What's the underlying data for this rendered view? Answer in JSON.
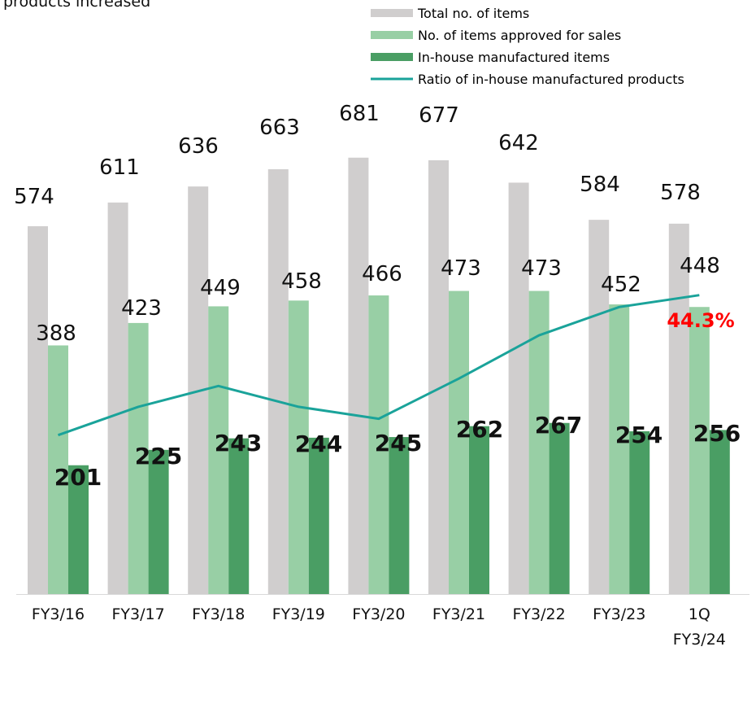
{
  "header_fragment": "products increased",
  "chart_data": {
    "type": "bar",
    "title": "",
    "xlabel": "",
    "ylabel": "",
    "categories": [
      "FY3/16",
      "FY3/17",
      "FY3/18",
      "FY3/19",
      "FY3/20",
      "FY3/21",
      "FY3/22",
      "FY3/23",
      "1Q FY3/24"
    ],
    "series": [
      {
        "name": "Total no. of items",
        "type": "bar",
        "color": "#d0cece",
        "values": [
          574,
          611,
          636,
          663,
          681,
          677,
          642,
          584,
          578
        ]
      },
      {
        "name": "No. of items approved for sales",
        "type": "bar",
        "color": "#98cfa5",
        "values": [
          388,
          423,
          449,
          458,
          466,
          473,
          473,
          452,
          448
        ]
      },
      {
        "name": "In-house manufactured items",
        "type": "bar",
        "color": "#4a9e64",
        "values": [
          201,
          225,
          243,
          244,
          245,
          262,
          267,
          254,
          256
        ]
      },
      {
        "name": "Ratio of in-house manufactured products",
        "type": "line",
        "color": "#1aa39a",
        "unit": "%",
        "values": [
          34.9,
          36.8,
          38.2,
          36.8,
          36.0,
          38.7,
          41.6,
          43.5,
          44.3
        ]
      }
    ],
    "value_labels": {
      "total": [
        "574",
        "611",
        "636",
        "663",
        "681",
        "677",
        "642",
        "584",
        "578"
      ],
      "approved": [
        "388",
        "423",
        "449",
        "458",
        "466",
        "473",
        "473",
        "452",
        "448"
      ],
      "inhouse": [
        "201",
        "225",
        "243",
        "244",
        "245",
        "262",
        "267",
        "254",
        "256"
      ],
      "ratio_last": "44.3%"
    },
    "tick_labels": [
      [
        "FY3/16"
      ],
      [
        "FY3/17"
      ],
      [
        "FY3/18"
      ],
      [
        "FY3/19"
      ],
      [
        "FY3/20"
      ],
      [
        "FY3/21"
      ],
      [
        "FY3/22"
      ],
      [
        "FY3/23"
      ],
      [
        "1Q",
        "FY3/24"
      ]
    ],
    "ylim": [
      0,
      700
    ],
    "ratio_axis_hidden": true,
    "grid": false,
    "legend_position": "top-right",
    "highlight_color": "#ff0000",
    "axis_line_color": "#d9d9d9"
  }
}
